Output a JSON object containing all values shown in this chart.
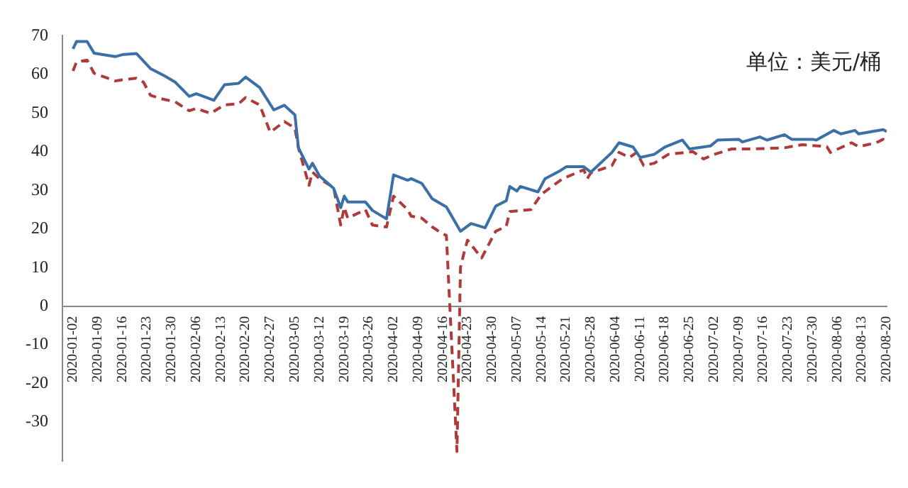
{
  "chart_data": {
    "type": "line",
    "annotations": [
      "单位：美元/桶"
    ],
    "ylim": [
      -40,
      70
    ],
    "yticks": [
      -30,
      -20,
      -10,
      0,
      10,
      20,
      30,
      40,
      50,
      60,
      70
    ],
    "xlim": [
      "2019-12-30",
      "2020-08-20"
    ],
    "xticks": [
      "2020-01-02",
      "2020-01-09",
      "2020-01-16",
      "2020-01-23",
      "2020-01-30",
      "2020-02-06",
      "2020-02-13",
      "2020-02-20",
      "2020-02-27",
      "2020-03-05",
      "2020-03-12",
      "2020-03-19",
      "2020-03-26",
      "2020-04-02",
      "2020-04-09",
      "2020-04-16",
      "2020-04-23",
      "2020-04-30",
      "2020-05-07",
      "2020-05-14",
      "2020-05-21",
      "2020-05-28",
      "2020-06-04",
      "2020-06-11",
      "2020-06-18",
      "2020-06-25",
      "2020-07-02",
      "2020-07-09",
      "2020-07-16",
      "2020-07-23",
      "2020-07-30",
      "2020-08-06",
      "2020-08-13",
      "2020-08-20"
    ],
    "grid": false,
    "legend": false,
    "series": [
      {
        "color": "#3a6fa8",
        "line_style": "solid",
        "x": [
          "2020-01-02",
          "2020-01-03",
          "2020-01-06",
          "2020-01-08",
          "2020-01-14",
          "2020-01-16",
          "2020-01-20",
          "2020-01-24",
          "2020-01-28",
          "2020-01-31",
          "2020-02-04",
          "2020-02-06",
          "2020-02-11",
          "2020-02-14",
          "2020-02-18",
          "2020-02-20",
          "2020-02-24",
          "2020-02-28",
          "2020-03-02",
          "2020-03-05",
          "2020-03-06",
          "2020-03-09",
          "2020-03-10",
          "2020-03-12",
          "2020-03-16",
          "2020-03-18",
          "2020-03-19",
          "2020-03-20",
          "2020-03-25",
          "2020-03-27",
          "2020-03-31",
          "2020-04-02",
          "2020-04-06",
          "2020-04-07",
          "2020-04-10",
          "2020-04-13",
          "2020-04-17",
          "2020-04-21",
          "2020-04-24",
          "2020-04-28",
          "2020-05-01",
          "2020-05-04",
          "2020-05-05",
          "2020-05-07",
          "2020-05-08",
          "2020-05-13",
          "2020-05-15",
          "2020-05-19",
          "2020-05-21",
          "2020-05-26",
          "2020-05-28",
          "2020-06-03",
          "2020-06-05",
          "2020-06-09",
          "2020-06-11",
          "2020-06-15",
          "2020-06-18",
          "2020-06-23",
          "2020-06-25",
          "2020-07-01",
          "2020-07-03",
          "2020-07-09",
          "2020-07-10",
          "2020-07-15",
          "2020-07-17",
          "2020-07-22",
          "2020-07-24",
          "2020-07-30",
          "2020-07-31",
          "2020-08-05",
          "2020-08-07",
          "2020-08-11",
          "2020-08-12",
          "2020-08-19",
          "2020-08-20"
        ],
        "values": [
          66.6,
          68.5,
          68.5,
          65.5,
          64.6,
          65.1,
          65.4,
          61.5,
          59.6,
          58,
          54.3,
          55,
          53.3,
          57.3,
          57.7,
          59.3,
          56.6,
          50.8,
          52,
          49.5,
          41,
          35.5,
          37,
          33.7,
          30.5,
          25.5,
          28.5,
          27,
          27,
          24.8,
          22.6,
          34,
          32.6,
          33,
          31.8,
          27.8,
          25.7,
          19.4,
          21.4,
          20.3,
          25.9,
          27.3,
          31,
          29.8,
          31,
          29.6,
          33,
          34.9,
          36.1,
          36.1,
          34.7,
          39.8,
          42.3,
          41.2,
          38.5,
          39.3,
          41.2,
          43,
          40.7,
          41.5,
          43,
          43.2,
          42.5,
          43.8,
          43,
          44.4,
          43.2,
          43.2,
          43,
          45.5,
          44.6,
          45.5,
          44.6,
          45.7,
          45.2
        ]
      },
      {
        "color": "#b03a3a",
        "line_style": "dashed",
        "x": [
          "2020-01-02",
          "2020-01-03",
          "2020-01-06",
          "2020-01-08",
          "2020-01-14",
          "2020-01-16",
          "2020-01-20",
          "2020-01-22",
          "2020-01-24",
          "2020-01-27",
          "2020-01-31",
          "2020-02-04",
          "2020-02-06",
          "2020-02-10",
          "2020-02-14",
          "2020-02-18",
          "2020-02-20",
          "2020-02-24",
          "2020-02-27",
          "2020-03-02",
          "2020-03-05",
          "2020-03-06",
          "2020-03-09",
          "2020-03-10",
          "2020-03-12",
          "2020-03-16",
          "2020-03-18",
          "2020-03-19",
          "2020-03-20",
          "2020-03-25",
          "2020-03-27",
          "2020-03-31",
          "2020-04-02",
          "2020-04-06",
          "2020-04-07",
          "2020-04-10",
          "2020-04-13",
          "2020-04-15",
          "2020-04-17",
          "2020-04-20",
          "2020-04-21",
          "2020-04-22",
          "2020-04-23",
          "2020-04-27",
          "2020-05-01",
          "2020-05-04",
          "2020-05-05",
          "2020-05-11",
          "2020-05-14",
          "2020-05-20",
          "2020-05-26",
          "2020-05-27",
          "2020-05-28",
          "2020-06-03",
          "2020-06-05",
          "2020-06-08",
          "2020-06-10",
          "2020-06-12",
          "2020-06-15",
          "2020-06-19",
          "2020-06-26",
          "2020-06-29",
          "2020-07-02",
          "2020-07-07",
          "2020-07-13",
          "2020-07-22",
          "2020-07-27",
          "2020-08-03",
          "2020-08-04",
          "2020-08-10",
          "2020-08-12",
          "2020-08-17",
          "2020-08-19",
          "2020-08-20"
        ],
        "values": [
          60.9,
          63.2,
          63.7,
          60.3,
          58.3,
          58.6,
          59,
          58,
          54.6,
          53.7,
          52.9,
          50.6,
          51.2,
          49.9,
          52.1,
          52.4,
          54,
          52.1,
          45,
          47.8,
          46.1,
          41,
          31.3,
          34.7,
          33,
          30.7,
          21,
          25.6,
          22.8,
          25,
          21,
          20.5,
          28.5,
          25,
          23.3,
          22.8,
          20.5,
          19.3,
          18.3,
          -37.6,
          10,
          13.8,
          17.1,
          12.5,
          19.4,
          20.7,
          24.5,
          25,
          29,
          33,
          35.3,
          33,
          34.5,
          36.4,
          39.8,
          38.5,
          39.8,
          36.4,
          37,
          39.3,
          40,
          38.1,
          39.3,
          40.7,
          40.7,
          41,
          41.8,
          41.3,
          39.8,
          42.3,
          41.3,
          42.3,
          43.2,
          42.3
        ]
      }
    ]
  }
}
